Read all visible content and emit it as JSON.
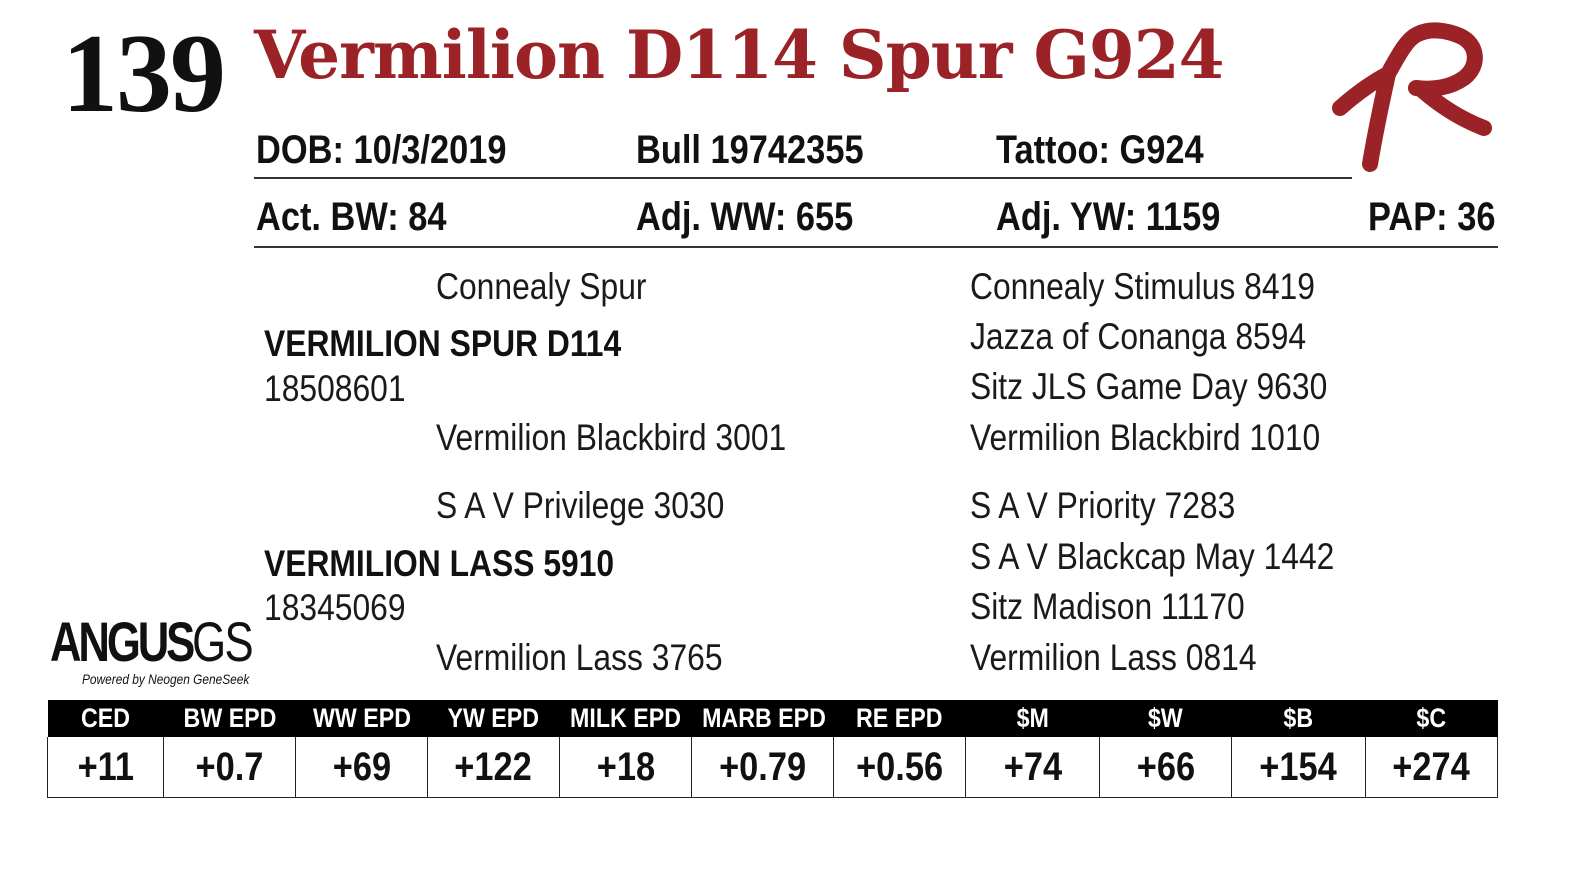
{
  "lot_number": "139",
  "animal_name": "Vermilion D114 Spur G924",
  "brand_color": "#9b2226",
  "header_row1": {
    "dob": "DOB:  10/3/2019",
    "registration": "Bull   19742355",
    "tattoo": "Tattoo:  G924"
  },
  "header_row2": {
    "birth_weight": "Act. BW: 84",
    "weaning_weight": "Adj. WW: 655",
    "yearling_weight": "Adj. YW: 1159",
    "pap": "PAP: 36"
  },
  "pedigree": {
    "sire": {
      "name": "VERMILION SPUR D114",
      "reg": "18508601",
      "sire": "Connealy Spur",
      "dam": "Vermilion Blackbird 3001"
    },
    "dam": {
      "name": "VERMILION LASS 5910",
      "reg": "18345069",
      "sire": "S A V Privilege 3030",
      "dam": "Vermilion Lass 3765"
    },
    "great_grandparents": [
      "Connealy Stimulus 8419",
      "Jazza of Conanga 8594",
      "Sitz JLS Game Day 9630",
      "Vermilion Blackbird 1010",
      "S A V Priority 7283",
      "S A V Blackcap May 1442",
      "Sitz Madison 11170",
      "Vermilion Lass 0814"
    ]
  },
  "angus_logo": {
    "main": "ANGUS",
    "suffix": "GS",
    "tagline": "Powered by Neogen GeneSeek"
  },
  "epd_table": {
    "headers": [
      "CED",
      "BW EPD",
      "WW EPD",
      "YW EPD",
      "MILK EPD",
      "MARB EPD",
      "RE EPD",
      "$M",
      "$W",
      "$B",
      "$C"
    ],
    "values": [
      "+11",
      "+0.7",
      "+69",
      "+122",
      "+18",
      "+0.79",
      "+0.56",
      "+74",
      "+66",
      "+154",
      "+274"
    ]
  }
}
